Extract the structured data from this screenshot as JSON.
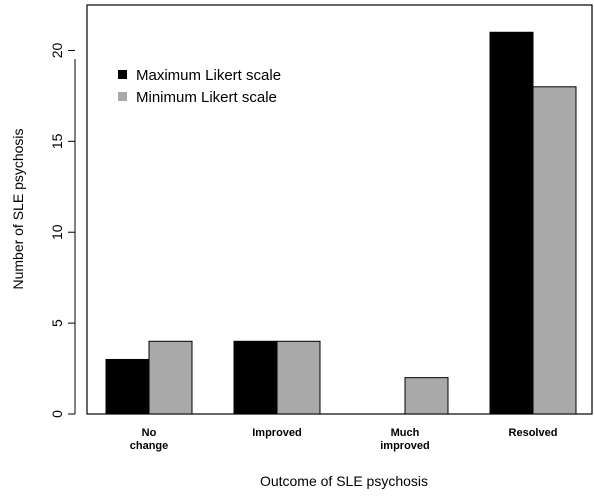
{
  "chart_data": {
    "type": "bar",
    "title": "",
    "xlabel": "Outcome of SLE psychosis",
    "ylabel": "Number of SLE psychosis",
    "categories": [
      [
        "No",
        "change"
      ],
      [
        "Improved"
      ],
      [
        "Much",
        "improved"
      ],
      [
        "Resolved"
      ]
    ],
    "series": [
      {
        "name": "Maximum Likert scale",
        "color": "#000000",
        "values": [
          3,
          4,
          0,
          21
        ]
      },
      {
        "name": "Minimum Likert scale",
        "color": "#a9a9a9",
        "values": [
          4,
          4,
          2,
          18
        ]
      }
    ],
    "ylim": [
      0,
      22.5
    ],
    "yticks": [
      0,
      5,
      10,
      15,
      20
    ],
    "grid": false,
    "legend": "top-left"
  }
}
